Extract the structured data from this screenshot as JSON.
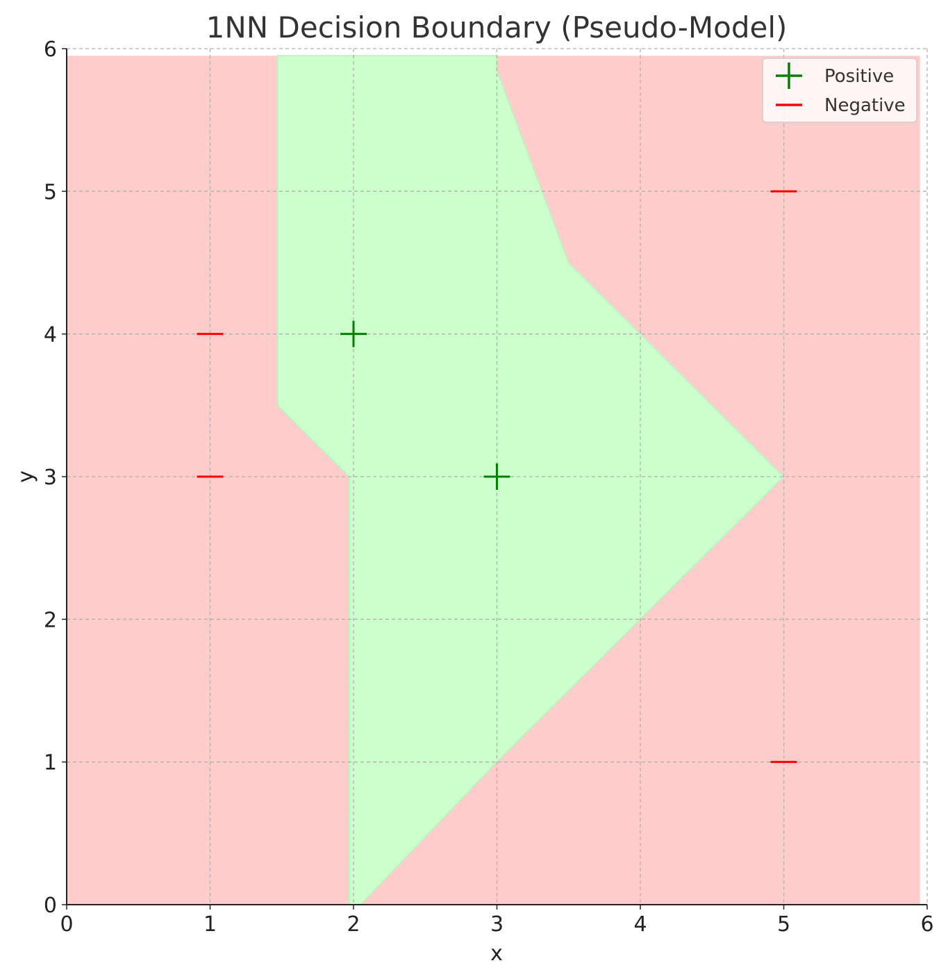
{
  "chart_data": {
    "type": "scatter",
    "title": "1NN Decision Boundary (Pseudo-Model)",
    "xlabel": "x",
    "ylabel": "y",
    "xlim": [
      0,
      6
    ],
    "ylim": [
      0,
      6
    ],
    "x_ticks": [
      0,
      1,
      2,
      3,
      4,
      5,
      6
    ],
    "y_ticks": [
      0,
      1,
      2,
      3,
      4,
      5,
      6
    ],
    "grid": true,
    "legend_position": "top-right",
    "series": [
      {
        "name": "Positive",
        "marker": "+",
        "color": "#008000",
        "points": [
          [
            2,
            4
          ],
          [
            3,
            3
          ]
        ]
      },
      {
        "name": "Negative",
        "marker": "_",
        "color": "#ff0000",
        "points": [
          [
            1,
            4
          ],
          [
            1,
            3
          ],
          [
            5,
            5
          ],
          [
            5,
            1
          ]
        ]
      }
    ],
    "regions": [
      {
        "label": "Negative",
        "color": "#ffcccc"
      },
      {
        "label": "Positive",
        "color": "#ccffcc",
        "polygon": [
          [
            1.47,
            5.95
          ],
          [
            3.0,
            5.95
          ],
          [
            3.0,
            5.85
          ],
          [
            3.5,
            4.5
          ],
          [
            4.5,
            3.5
          ],
          [
            5.0,
            3.0
          ],
          [
            4.0,
            2.0
          ],
          [
            3.0,
            1.0
          ],
          [
            2.05,
            0.0
          ],
          [
            1.97,
            0.0
          ],
          [
            1.97,
            3.0
          ],
          [
            1.47,
            3.5
          ]
        ]
      }
    ]
  }
}
